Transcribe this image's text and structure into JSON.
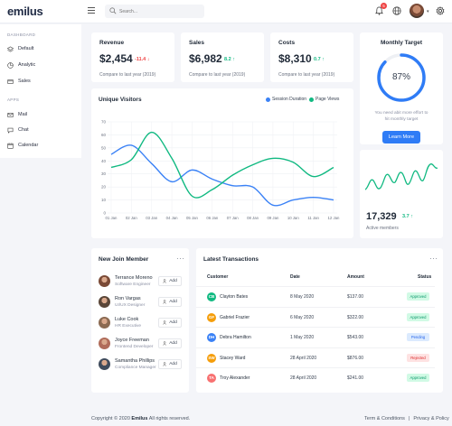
{
  "brand": "emilus",
  "search": {
    "placeholder": "Search..."
  },
  "notifications": {
    "count": "5"
  },
  "sidebar": {
    "sections": [
      {
        "title": "DASHBOARD",
        "items": [
          {
            "label": "Default",
            "icon": "layers-icon"
          },
          {
            "label": "Analytic",
            "icon": "chart-icon"
          },
          {
            "label": "Sales",
            "icon": "wallet-icon"
          }
        ]
      },
      {
        "title": "APPS",
        "items": [
          {
            "label": "Mail",
            "icon": "mail-icon"
          },
          {
            "label": "Chat",
            "icon": "chat-icon"
          },
          {
            "label": "Calendar",
            "icon": "calendar-icon"
          }
        ]
      }
    ]
  },
  "stats": [
    {
      "title": "Revenue",
      "value": "$2,454",
      "delta": "-11.4",
      "direction": "down",
      "sub": "Compare to last year (2019)"
    },
    {
      "title": "Sales",
      "value": "$6,982",
      "delta": "8.2",
      "direction": "up",
      "sub": "Compare to last year (2019)"
    },
    {
      "title": "Costs",
      "value": "$8,310",
      "delta": "0.7",
      "direction": "up",
      "sub": "Compare to last year (2019)"
    }
  ],
  "monthly_target": {
    "title": "Monthly Target",
    "percent": 87,
    "percent_label": "87%",
    "sub_line1": "You need abit more effort to",
    "sub_line2": "hit monthly target",
    "button": "Learn More"
  },
  "active_members": {
    "value": "17,329",
    "delta": "3.7",
    "label": "Active members"
  },
  "unique_visitors": {
    "title": "Unique Visitors"
  },
  "chart_data": {
    "type": "line",
    "title": "Unique Visitors",
    "x": [
      "01 Jan",
      "02 Jan",
      "03 Jan",
      "04 Jan",
      "05 Jan",
      "06 Jan",
      "07 Jan",
      "08 Jan",
      "09 Jan",
      "10 Jan",
      "11 Jan",
      "12 Jan"
    ],
    "y_ticks": [
      "0",
      "10",
      "20",
      "30",
      "40",
      "50",
      "60",
      "70"
    ],
    "ylim": [
      0,
      70
    ],
    "series": [
      {
        "name": "Session Duration",
        "color": "#3b82f6",
        "values": [
          45,
          52,
          38,
          24,
          33,
          26,
          21,
          20,
          6,
          10,
          12,
          10
        ]
      },
      {
        "name": "Page Views",
        "color": "#10b981",
        "values": [
          35,
          41,
          62,
          42,
          13,
          18,
          29,
          37,
          42,
          39,
          28,
          35
        ]
      }
    ],
    "grid": true,
    "legend": "top-right"
  },
  "members": {
    "title": "New Join Member",
    "add_label": "Add",
    "list": [
      {
        "name": "Terrance Moreno",
        "role": "Software Engineer",
        "color": "#7a4a36"
      },
      {
        "name": "Ron Vargas",
        "role": "UI/UX Designer",
        "color": "#5a4638"
      },
      {
        "name": "Luke Cook",
        "role": "HR Executive",
        "color": "#8b6a52"
      },
      {
        "name": "Joyce Freeman",
        "role": "Frontend Developer",
        "color": "#b06c5a"
      },
      {
        "name": "Samantha Phillips",
        "role": "Compliance Manager",
        "color": "#3f4b5c"
      }
    ]
  },
  "transactions": {
    "title": "Latest Transactions",
    "headers": [
      "Customer",
      "Date",
      "Amount",
      "Status"
    ],
    "rows": [
      {
        "initials": "CB",
        "color": "#10b981",
        "customer": "Clayton Bates",
        "date": "8 May 2020",
        "amount": "$137.00",
        "status": "Approved"
      },
      {
        "initials": "GF",
        "color": "#f59e0b",
        "customer": "Gabriel Frazier",
        "date": "6 May 2020",
        "amount": "$322.00",
        "status": "Approved"
      },
      {
        "initials": "DH",
        "color": "#3b82f6",
        "customer": "Debra Hamilton",
        "date": "1 May 2020",
        "amount": "$543.00",
        "status": "Pending"
      },
      {
        "initials": "SW",
        "color": "#f59e0b",
        "customer": "Stacey Ward",
        "date": "28 April 2020",
        "amount": "$876.00",
        "status": "Rejected"
      },
      {
        "initials": "TA",
        "color": "#f87171",
        "customer": "Troy Alexander",
        "date": "28 April 2020",
        "amount": "$241.00",
        "status": "Approved"
      }
    ]
  },
  "footer": {
    "copyright_pre": "Copyright © 2020",
    "brand": "Emilus",
    "copyright_post": "All rights reserved.",
    "terms": "Term & Conditions",
    "sep": "|",
    "privacy": "Privacy & Policy"
  }
}
